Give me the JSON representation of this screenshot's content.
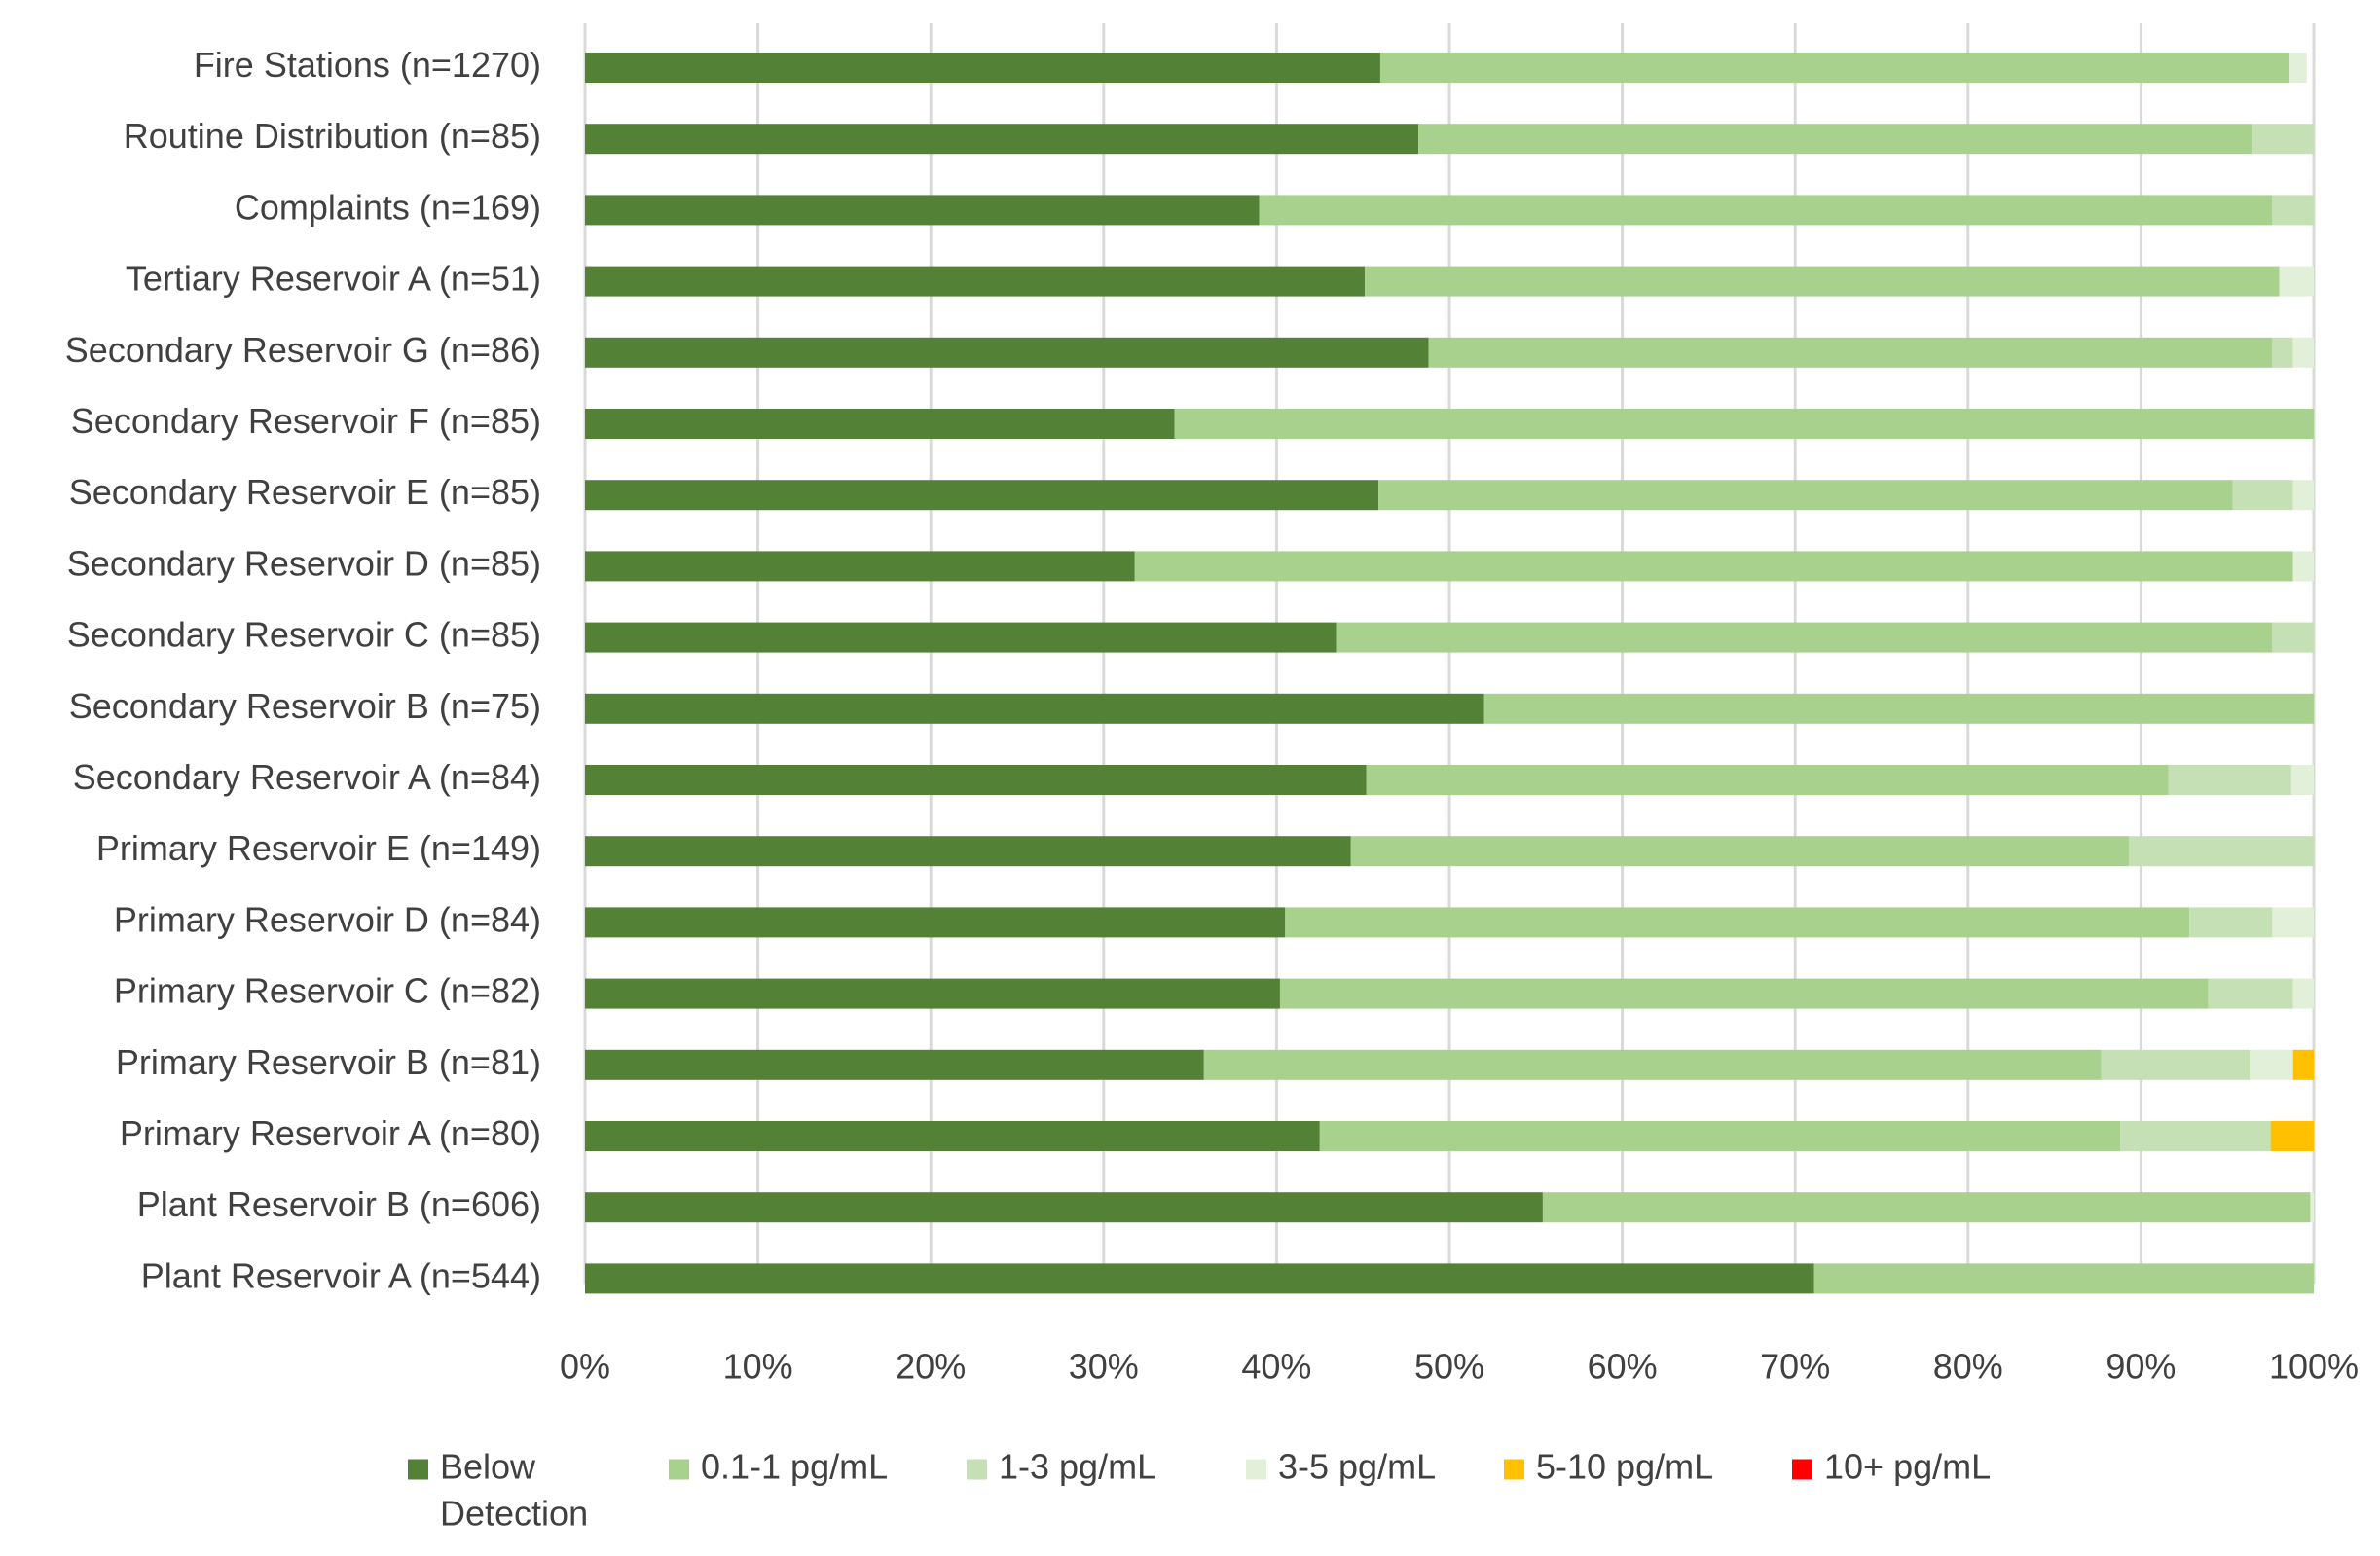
{
  "chart_data": {
    "type": "bar",
    "orientation": "horizontal",
    "stacked": "percent",
    "categories": [
      "Fire Stations (n=1270)",
      "Routine Distribution (n=85)",
      "Complaints (n=169)",
      "Tertiary Reservoir A (n=51)",
      "Secondary Reservoir G (n=86)",
      "Secondary Reservoir F (n=85)",
      "Secondary Reservoir E (n=85)",
      "Secondary Reservoir D (n=85)",
      "Secondary Reservoir C (n=85)",
      "Secondary Reservoir B (n=75)",
      "Secondary Reservoir A (n=84)",
      "Primary Reservoir E (n=149)",
      "Primary Reservoir D (n=84)",
      "Primary Reservoir C (n=82)",
      "Primary Reservoir B (n=81)",
      "Primary Reservoir A (n=80)",
      "Plant Reservoir B (n=606)",
      "Plant Reservoir A (n=544)"
    ],
    "series": [
      {
        "name": "Below Detection",
        "color": "#538135",
        "values": [
          46.0,
          48.2,
          39.0,
          45.1,
          48.8,
          34.1,
          45.9,
          31.8,
          43.5,
          52.0,
          45.2,
          44.3,
          40.5,
          40.2,
          35.8,
          42.5,
          55.4,
          71.1
        ]
      },
      {
        "name": "0.1-1 pg/mL",
        "color": "#A9D18E",
        "values": [
          52.6,
          48.2,
          58.6,
          52.9,
          48.8,
          65.9,
          49.4,
          67.0,
          54.1,
          48.0,
          46.4,
          45.0,
          52.3,
          53.7,
          51.9,
          46.3,
          44.4,
          28.9
        ]
      },
      {
        "name": "1-3 pg/mL",
        "color": "#C5E0B4",
        "values": [
          0.0,
          3.6,
          2.4,
          0.0,
          1.2,
          0.0,
          3.5,
          0.0,
          2.4,
          0.0,
          7.1,
          10.7,
          4.8,
          4.9,
          8.6,
          8.7,
          0.0,
          0.0
        ]
      },
      {
        "name": "3-5 pg/mL",
        "color": "#E2F0D9",
        "values": [
          1.0,
          0.0,
          0.0,
          2.0,
          1.2,
          0.0,
          1.2,
          1.2,
          0.0,
          0.0,
          1.3,
          0.0,
          2.4,
          1.2,
          2.5,
          0.0,
          0.2,
          0.0
        ]
      },
      {
        "name": "5-10 pg/mL",
        "color": "#FFC000",
        "values": [
          0.0,
          0.0,
          0.0,
          0.0,
          0.0,
          0.0,
          0.0,
          0.0,
          0.0,
          0.0,
          0.0,
          0.0,
          0.0,
          0.0,
          1.2,
          2.5,
          0.0,
          0.0
        ]
      },
      {
        "name": "10+ pg/mL",
        "color": "#FF0000",
        "values": [
          0,
          0,
          0,
          0,
          0,
          0,
          0,
          0,
          0,
          0,
          0,
          0,
          0,
          0,
          0,
          0,
          0,
          0
        ]
      }
    ],
    "xlim": [
      0,
      100
    ],
    "x_ticks": [
      "0%",
      "10%",
      "20%",
      "30%",
      "40%",
      "50%",
      "60%",
      "70%",
      "80%",
      "90%",
      "100%"
    ],
    "grid": "vertical",
    "legend": {
      "position": "bottom",
      "entries": [
        "Below",
        "0.1-1 pg/mL",
        "1-3 pg/mL",
        "3-5 pg/mL",
        "5-10 pg/mL",
        "10+ pg/mL"
      ],
      "first_entry_second_line": "Detection"
    },
    "title": "",
    "xlabel": "",
    "ylabel": ""
  }
}
